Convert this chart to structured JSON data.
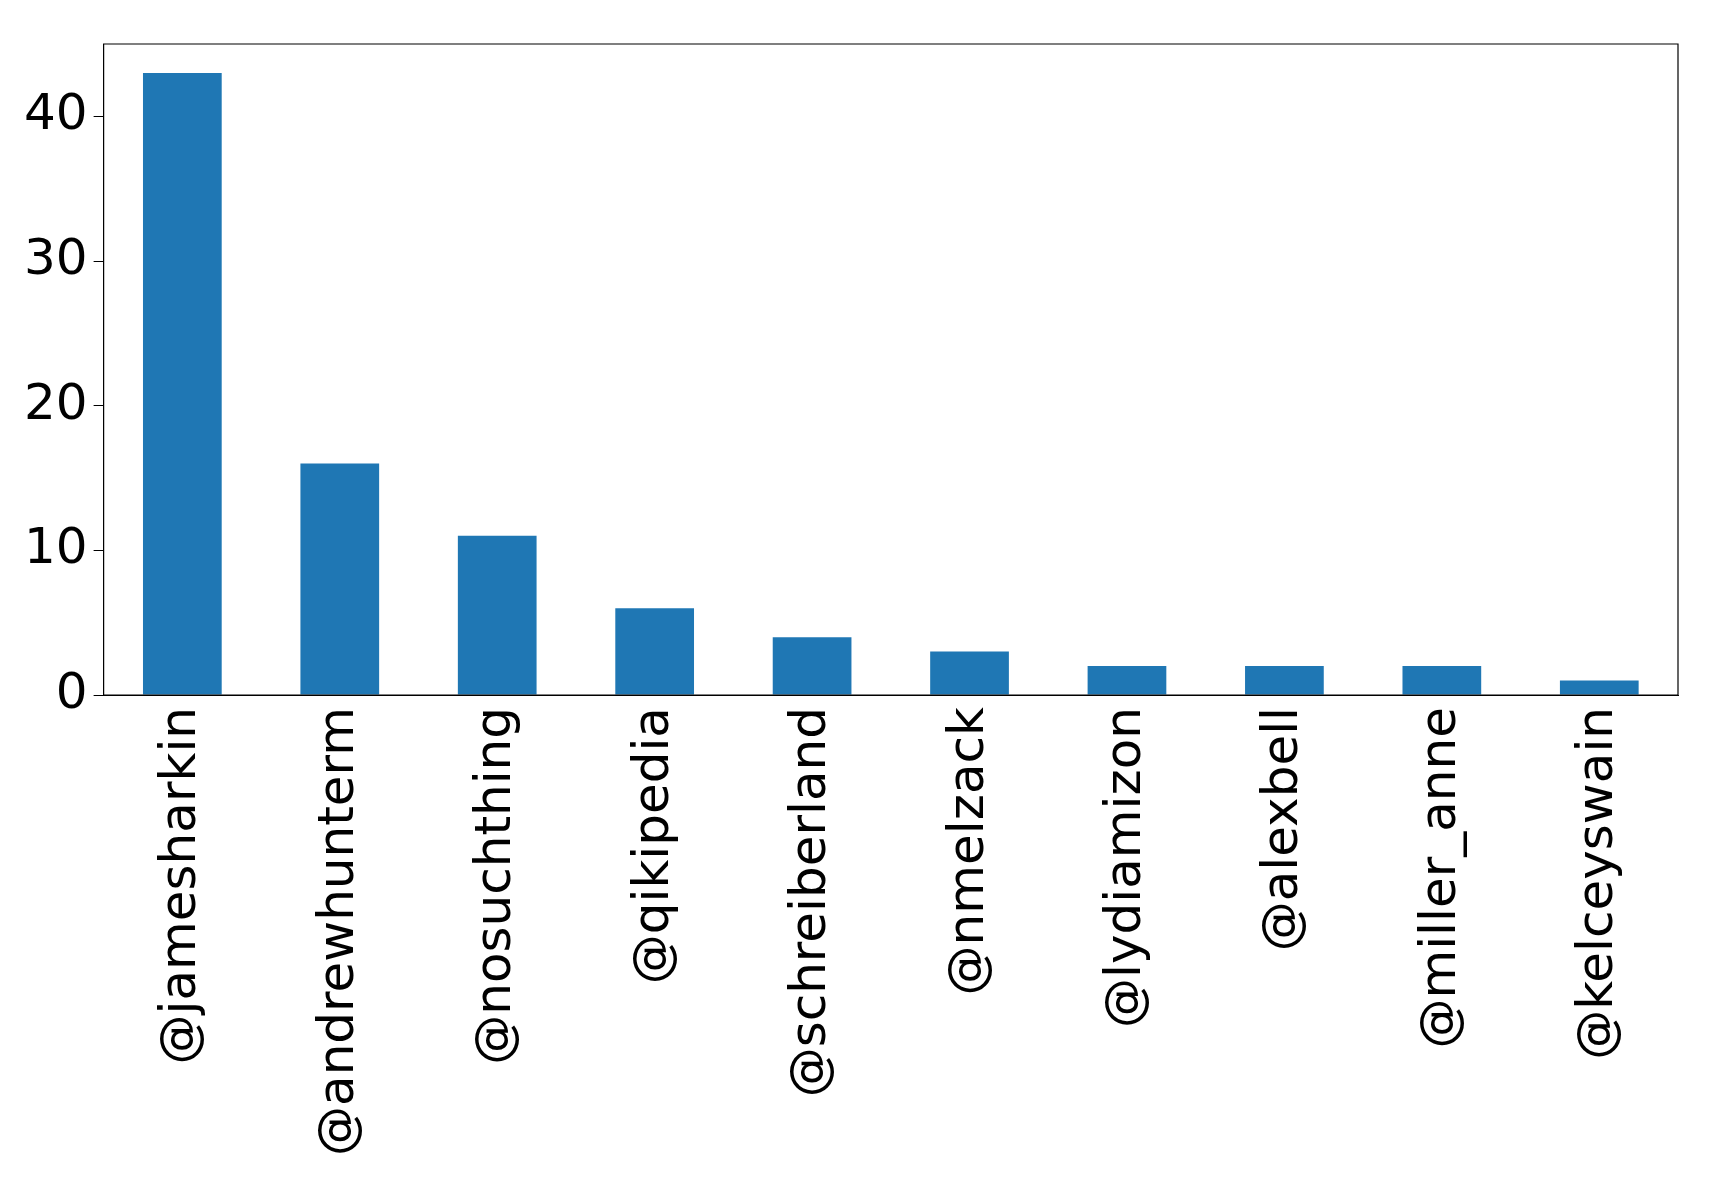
{
  "chart_data": {
    "type": "bar",
    "categories": [
      "@jamesharkin",
      "@andrewhunterm",
      "@nosuchthing",
      "@qikipedia",
      "@schreiberland",
      "@nmelzack",
      "@lydiamizon",
      "@alexbell",
      "@miller_anne",
      "@kelceyswain"
    ],
    "values": [
      43,
      16,
      11,
      6,
      4,
      3,
      2,
      2,
      2,
      1
    ],
    "color": "#1f77b4",
    "ylim": [
      0,
      45
    ],
    "yticks": [
      0,
      10,
      20,
      30,
      40
    ],
    "grid": false,
    "legend": false
  }
}
